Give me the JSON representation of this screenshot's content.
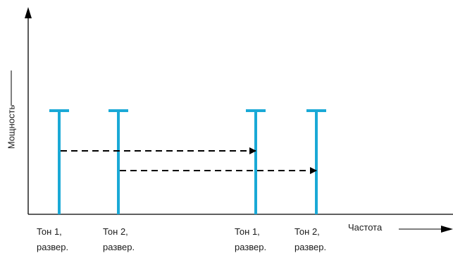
{
  "axes": {
    "y_label": "Мощность",
    "x_label": "Частота"
  },
  "colors": {
    "tone": "#1aa9d6",
    "axis": "#000000",
    "arrow": "#000000"
  },
  "tones": [
    {
      "id": "tone1-sweep-a",
      "line1": "Тон 1,",
      "line2": "развер."
    },
    {
      "id": "tone2-sweep-a",
      "line1": "Тон 2,",
      "line2": "развер."
    },
    {
      "id": "tone1-sweep-b",
      "line1": "Тон 1,",
      "line2": "развер."
    },
    {
      "id": "tone2-sweep-b",
      "line1": "Тон 2,",
      "line2": "развер."
    }
  ]
}
